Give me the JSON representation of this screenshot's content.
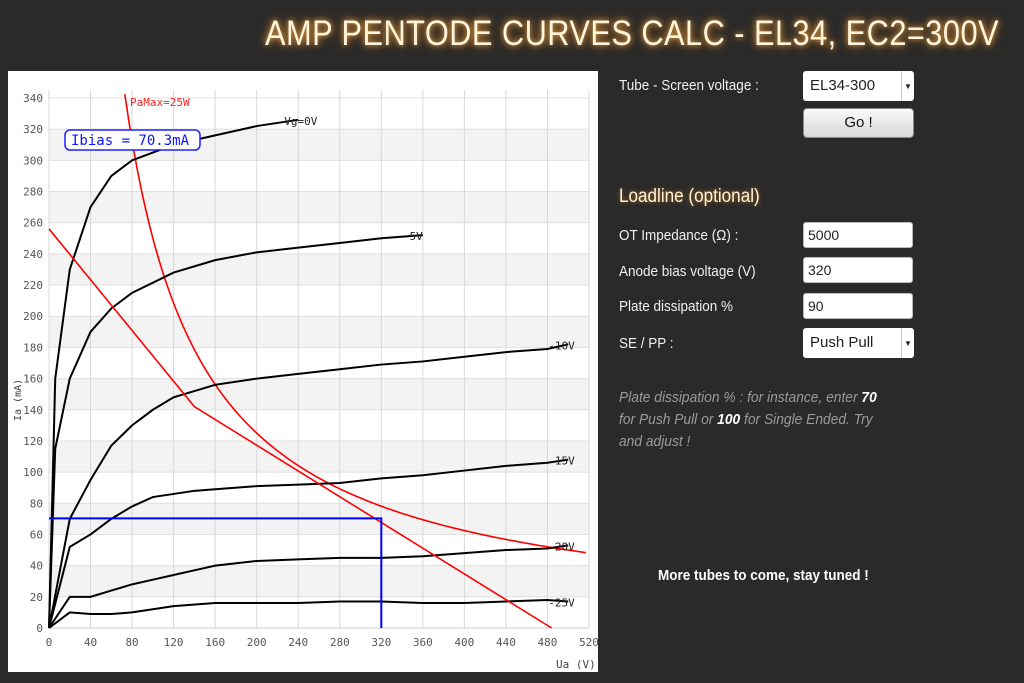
{
  "title": "AMP PENTODE CURVES CALC - EL34, EC2=300V",
  "form": {
    "tube_label": "Tube - Screen voltage :",
    "tube_value": "EL34-300",
    "go_label": "Go !",
    "section_title": "Loadline (optional)",
    "ot_label": "OT Impedance (Ω) :",
    "ot_value": "5000",
    "bias_label": "Anode bias voltage (V)",
    "bias_value": "320",
    "diss_label": "Plate dissipation %",
    "diss_value": "90",
    "sepp_label": "SE / PP :",
    "sepp_value": "Push Pull",
    "hint_1": "Plate dissipation % : for instance, enter ",
    "hint_70": "70",
    "hint_2": " for Push Pull or ",
    "hint_100": "100",
    "hint_3": " for Single Ended. Try and adjust !",
    "more": "More tubes to come, stay tuned !"
  },
  "chart_data": {
    "type": "line",
    "xlabel": "Ua (V)",
    "ylabel": "Ia (mA)",
    "xlim": [
      0,
      520
    ],
    "ylim": [
      0,
      340
    ],
    "xticks": [
      0,
      40,
      80,
      120,
      160,
      200,
      240,
      280,
      320,
      360,
      400,
      440,
      480,
      520
    ],
    "yticks": [
      0,
      20,
      40,
      60,
      80,
      100,
      120,
      140,
      160,
      180,
      200,
      220,
      240,
      260,
      280,
      300,
      320,
      340
    ],
    "grid": true,
    "series": [
      {
        "name": "Vg=0V",
        "color": "#000000",
        "x": [
          0,
          6,
          20,
          40,
          60,
          80,
          120,
          160,
          200,
          240
        ],
        "y": [
          0,
          160,
          230,
          270,
          290,
          300,
          310,
          316,
          322,
          326
        ]
      },
      {
        "name": "-5V",
        "color": "#000000",
        "x": [
          0,
          6,
          20,
          40,
          60,
          80,
          120,
          160,
          200,
          240,
          280,
          320,
          360
        ],
        "y": [
          0,
          115,
          160,
          190,
          205,
          215,
          228,
          236,
          241,
          244,
          247,
          250,
          252
        ]
      },
      {
        "name": "-10V",
        "color": "#000000",
        "x": [
          0,
          20,
          40,
          60,
          80,
          100,
          120,
          140,
          160,
          200,
          240,
          280,
          320,
          360,
          400,
          440,
          480,
          500
        ],
        "y": [
          0,
          70,
          95,
          117,
          130,
          140,
          148,
          152,
          156,
          160,
          163,
          166,
          169,
          171,
          174,
          177,
          179,
          182
        ]
      },
      {
        "name": "-15V",
        "color": "#000000",
        "x": [
          0,
          20,
          40,
          60,
          80,
          100,
          120,
          140,
          160,
          200,
          240,
          280,
          320,
          360,
          400,
          440,
          480,
          500
        ],
        "y": [
          0,
          52,
          60,
          70,
          78,
          84,
          86,
          88,
          89,
          91,
          92,
          93,
          96,
          98,
          101,
          104,
          106,
          108
        ]
      },
      {
        "name": "-20V",
        "color": "#000000",
        "x": [
          0,
          20,
          40,
          60,
          80,
          100,
          120,
          140,
          160,
          200,
          240,
          280,
          320,
          360,
          400,
          440,
          480,
          500
        ],
        "y": [
          0,
          20,
          20,
          24,
          28,
          31,
          34,
          37,
          40,
          43,
          44,
          45,
          45,
          46,
          48,
          50,
          51,
          53
        ]
      },
      {
        "name": "-25V",
        "color": "#000000",
        "x": [
          0,
          20,
          40,
          60,
          80,
          100,
          120,
          160,
          200,
          240,
          280,
          320,
          360,
          400,
          440,
          480,
          500
        ],
        "y": [
          0,
          10,
          9,
          9,
          10,
          12,
          14,
          16,
          16,
          16,
          17,
          17,
          16,
          16,
          17,
          18,
          17
        ]
      },
      {
        "name": "loadline",
        "color": "#ff0000",
        "x": [
          0,
          140,
          484
        ],
        "y": [
          256,
          142,
          0
        ]
      }
    ],
    "pamax": {
      "label": "PaMax=25W",
      "watts": 25,
      "color": "#ff0000"
    },
    "bias_point": {
      "x": 320,
      "y": 70.3,
      "color": "#0000ff",
      "label": "Ibias = 70.3mA"
    }
  }
}
